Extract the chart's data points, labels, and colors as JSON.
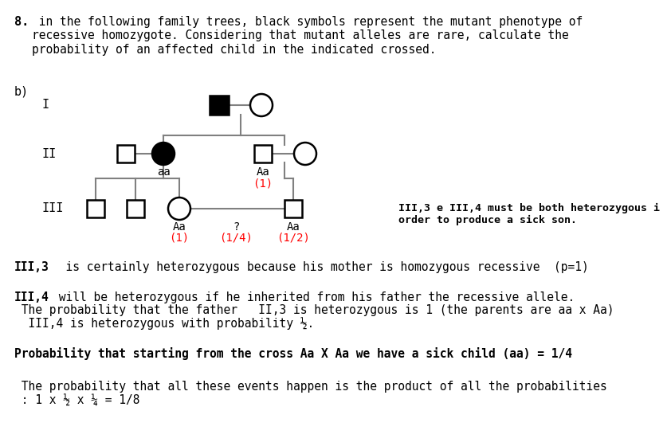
{
  "bg_color": "#ffffff",
  "title_bold": "8.",
  "title_rest": " in the following family trees, black symbols represent the mutant phenotype of\nrecessive homozygote. Considering that mutant alleles are rare, calculate the\nprobability of an affected child in the indicated crossed.",
  "annotation_right": "III,3 e III,4 must be both heterozygous i\norder to produce a sick son.",
  "text_line1_bold": "III,3",
  "text_line1_rest": "  is certainly heterozygous because his mother is homozygous recessive  (p=1)",
  "text_line2_bold": "III,4",
  "text_line2_rest": " will be heterozygous if he inherited from his father the recessive allele.",
  "text_line2b": " The probability that the father   II,3 is heterozygous is 1 (the parents are aa x Aa)",
  "text_line2c": "  III,4 is heterozygous with probability ½.",
  "text_line3_bold": "Probability that starting from the cross Aa X Aa we have a sick child (aa) = 1/4",
  "text_line4": " The probability that all these events happen is the product of all the probabilities\n : 1 x ½ x ¼ = 1/8"
}
